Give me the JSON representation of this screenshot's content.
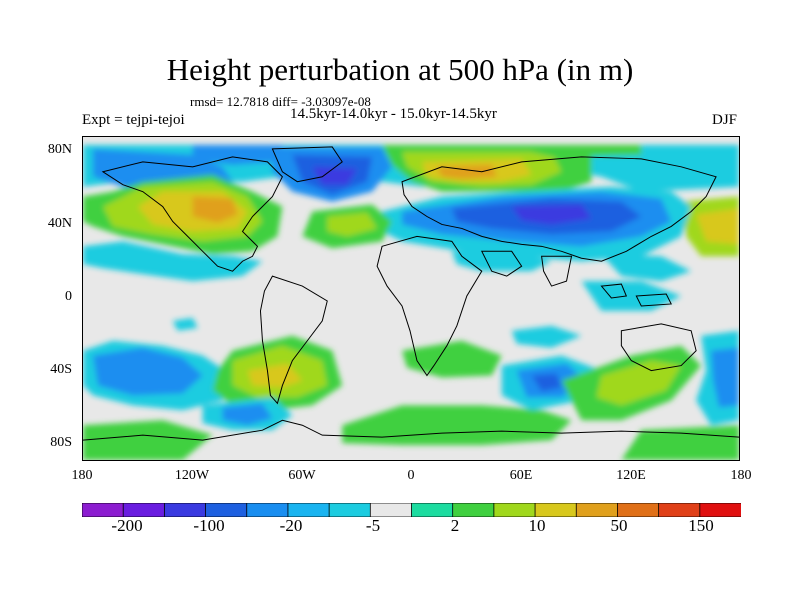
{
  "title": "Height perturbation at 500 hPa (in m)",
  "stats": "rmsd= 12.7818 diff= -3.03097e-08",
  "left_label": "Expt = tejpi-tejoi",
  "center_label": "14.5kyr-14.0kyr - 15.0kyr-14.5kyr",
  "right_label": "DJF",
  "y_ticks": [
    "80N",
    "40N",
    "0",
    "40S",
    "80S"
  ],
  "x_ticks": [
    "180",
    "120W",
    "60W",
    "0",
    "60E",
    "120E",
    "180"
  ],
  "colorbar": {
    "colors": [
      "#8c1cd0",
      "#6a1de0",
      "#3a3ae0",
      "#1e60e0",
      "#1a8ef0",
      "#1ab4f0",
      "#1ccce0",
      "#e8e8e8",
      "#1cdca0",
      "#40d040",
      "#a0d81c",
      "#d8c81c",
      "#e0a01c",
      "#e07018",
      "#e04018",
      "#e01010"
    ],
    "labels": [
      "-200",
      "-100",
      "-20",
      "-5",
      "2",
      "10",
      "50",
      "150"
    ]
  }
}
